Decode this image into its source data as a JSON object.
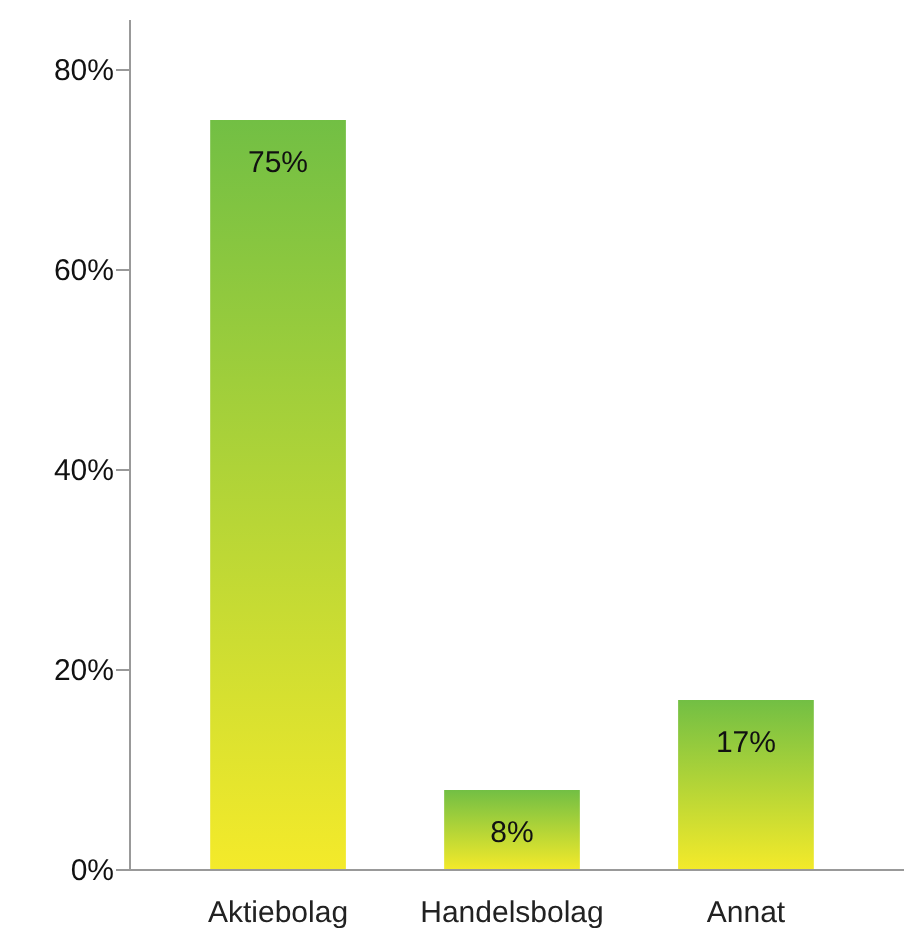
{
  "chart_data": {
    "type": "bar",
    "categories": [
      "Aktiebolag",
      "Handelsbolag",
      "Annat"
    ],
    "values": [
      75,
      8,
      17
    ],
    "value_labels": [
      "75%",
      "8%",
      "17%"
    ],
    "color": "#72bf44",
    "ylim": [
      0,
      85
    ],
    "yticks": [
      {
        "value": 0,
        "label": "0%"
      },
      {
        "value": 20,
        "label": "20%"
      },
      {
        "value": 40,
        "label": "40%"
      },
      {
        "value": 60,
        "label": "60%"
      },
      {
        "value": 80,
        "label": "80%"
      }
    ],
    "grid": false
  }
}
